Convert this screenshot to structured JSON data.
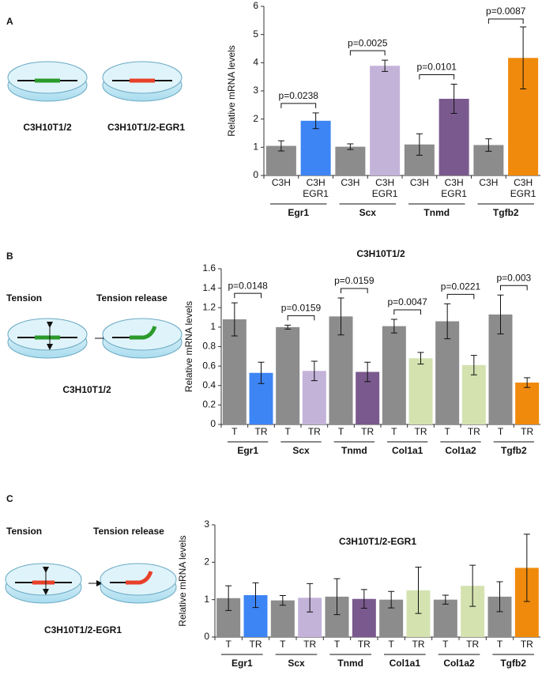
{
  "panels": [
    {
      "label": "A",
      "captions": [
        "C3H10T1/2",
        "C3H10T1/2-EGR1"
      ]
    },
    {
      "label": "B",
      "captions": [
        "Tension",
        "Tension release",
        "C3H10T1/2"
      ]
    },
    {
      "label": "C",
      "captions": [
        "Tension",
        "Tension release",
        "C3H10T1/2-EGR1"
      ]
    }
  ],
  "chart_data": [
    {
      "type": "bar",
      "y_label": "Relative mRNA levels",
      "ylim": [
        0,
        6
      ],
      "yticks": [
        0,
        1,
        2,
        3,
        4,
        5,
        6
      ],
      "bar_labels": [
        [
          "C3H"
        ],
        [
          "C3H",
          "EGR1"
        ]
      ],
      "groups": [
        {
          "name": "Egr1",
          "colors": [
            "#8c8c8c",
            "#3d85f5"
          ],
          "values": [
            1.05,
            1.94
          ],
          "errors": [
            0.18,
            0.28
          ],
          "p_value": "p=0.0238"
        },
        {
          "name": "Scx",
          "colors": [
            "#8c8c8c",
            "#c4b3d9"
          ],
          "values": [
            1.02,
            3.89
          ],
          "errors": [
            0.1,
            0.2
          ],
          "p_value": "p=0.0025"
        },
        {
          "name": "Tnmd",
          "colors": [
            "#8c8c8c",
            "#7a5a8e"
          ],
          "values": [
            1.1,
            2.72
          ],
          "errors": [
            0.38,
            0.52
          ],
          "p_value": "p=0.0101"
        },
        {
          "name": "Tgfb2",
          "colors": [
            "#8c8c8c",
            "#f08a0c"
          ],
          "values": [
            1.08,
            4.17
          ],
          "errors": [
            0.22,
            1.1
          ],
          "p_value": "p=0.0087"
        }
      ]
    },
    {
      "type": "bar",
      "title": "C3H10T1/2",
      "y_label": "Relative mRNA levels",
      "ylim": [
        0,
        1.6
      ],
      "yticks": [
        0,
        0.2,
        0.4,
        0.6,
        0.8,
        1,
        1.2,
        1.4,
        1.6
      ],
      "bar_labels": [
        [
          "T"
        ],
        [
          "TR"
        ]
      ],
      "groups": [
        {
          "name": "Egr1",
          "colors": [
            "#8c8c8c",
            "#3d85f5"
          ],
          "values": [
            1.08,
            0.53
          ],
          "errors": [
            0.17,
            0.11
          ],
          "p_value": "p=0.0148"
        },
        {
          "name": "Scx",
          "colors": [
            "#8c8c8c",
            "#c4b3d9"
          ],
          "values": [
            1.0,
            0.55
          ],
          "errors": [
            0.02,
            0.1
          ],
          "p_value": "p=0.0159"
        },
        {
          "name": "Tnmd",
          "colors": [
            "#8c8c8c",
            "#7a5a8e"
          ],
          "values": [
            1.11,
            0.54
          ],
          "errors": [
            0.19,
            0.1
          ],
          "p_value": "p=0.0159"
        },
        {
          "name": "Col1a1",
          "colors": [
            "#8c8c8c",
            "#d4e2b0"
          ],
          "values": [
            1.01,
            0.68
          ],
          "errors": [
            0.07,
            0.06
          ],
          "p_value": "p=0.0047"
        },
        {
          "name": "Col1a2",
          "colors": [
            "#8c8c8c",
            "#d4e2b0"
          ],
          "values": [
            1.06,
            0.61
          ],
          "errors": [
            0.18,
            0.1
          ],
          "p_value": "p=0.0221"
        },
        {
          "name": "Tgfb2",
          "colors": [
            "#8c8c8c",
            "#f08a0c"
          ],
          "values": [
            1.13,
            0.43
          ],
          "errors": [
            0.2,
            0.05
          ],
          "p_value": "p=0.003"
        }
      ]
    },
    {
      "type": "bar",
      "title": "C3H10T1/2-EGR1",
      "y_label": "Relative mRNA levels",
      "ylim": [
        0,
        3
      ],
      "yticks": [
        0,
        1,
        2,
        3
      ],
      "bar_labels": [
        [
          "T"
        ],
        [
          "TR"
        ]
      ],
      "groups": [
        {
          "name": "Egr1",
          "colors": [
            "#8c8c8c",
            "#3d85f5"
          ],
          "values": [
            1.04,
            1.12
          ],
          "errors": [
            0.33,
            0.33
          ]
        },
        {
          "name": "Scx",
          "colors": [
            "#8c8c8c",
            "#c4b3d9"
          ],
          "values": [
            0.98,
            1.05
          ],
          "errors": [
            0.13,
            0.38
          ]
        },
        {
          "name": "Tnmd",
          "colors": [
            "#8c8c8c",
            "#7a5a8e"
          ],
          "values": [
            1.08,
            1.02
          ],
          "errors": [
            0.48,
            0.25
          ]
        },
        {
          "name": "Col1a1",
          "colors": [
            "#8c8c8c",
            "#d4e2b0"
          ],
          "values": [
            1.0,
            1.25
          ],
          "errors": [
            0.22,
            0.62
          ]
        },
        {
          "name": "Col1a2",
          "colors": [
            "#8c8c8c",
            "#d4e2b0"
          ],
          "values": [
            1.0,
            1.37
          ],
          "errors": [
            0.12,
            0.55
          ]
        },
        {
          "name": "Tgfb2",
          "colors": [
            "#8c8c8c",
            "#f08a0c"
          ],
          "values": [
            1.08,
            1.85
          ],
          "errors": [
            0.4,
            0.9
          ]
        }
      ]
    }
  ]
}
